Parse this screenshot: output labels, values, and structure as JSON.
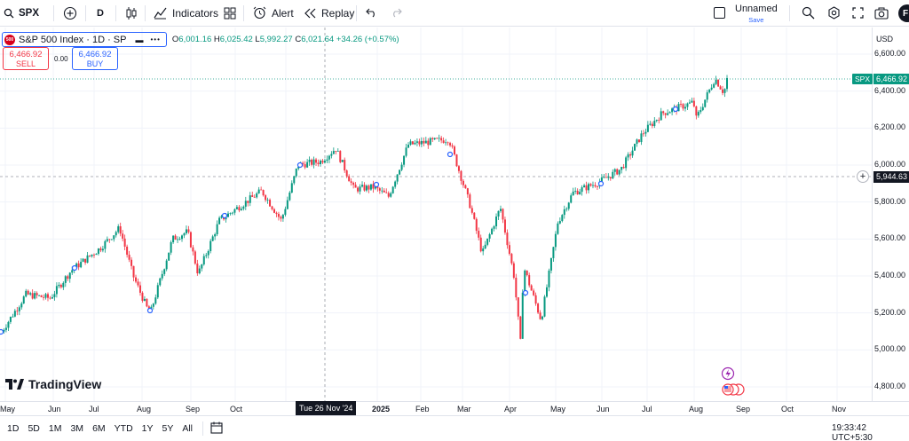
{
  "toolbar": {
    "symbol": "SPX",
    "interval": "D",
    "indicators_label": "Indicators",
    "alert_label": "Alert",
    "replay_label": "Replay",
    "layout_name": "Unnamed",
    "save_label": "Save",
    "user_initial": "F"
  },
  "legend": {
    "title": "S&P 500 Index · 1D · SP",
    "logo_text": "500",
    "open_k": "O",
    "open": "6,001.16",
    "high_k": "H",
    "high": "6,025.42",
    "low_k": "L",
    "low": "5,992.27",
    "close_k": "C",
    "close": "6,021.64",
    "change": "+34.26 (+0.57%)"
  },
  "trade": {
    "sell_price": "6,466.92",
    "sell_label": "SELL",
    "spread": "0.00",
    "buy_price": "6,466.92",
    "buy_label": "BUY"
  },
  "price_axis": {
    "currency": "USD",
    "ticks": [
      "6,600.00",
      "6,400.00",
      "6,200.00",
      "6,000.00",
      "5,800.00",
      "5,600.00",
      "5,400.00",
      "5,200.00",
      "5,000.00",
      "4,800.00"
    ],
    "last_symbol": "SPX",
    "last_price": "6,466.92",
    "crosshair_price": "5,944.63"
  },
  "time_axis": {
    "labels": [
      "May",
      "Jun",
      "Jul",
      "Aug",
      "Sep",
      "Oct",
      "Nov",
      "2025",
      "Feb",
      "Mar",
      "Apr",
      "May",
      "Jun",
      "Jul",
      "Aug",
      "Sep",
      "Oct",
      "Nov"
    ],
    "crosshair_date": "Tue 26 Nov '24"
  },
  "watermark": "TradingView",
  "bottom": {
    "ranges": [
      "1D",
      "5D",
      "1M",
      "3M",
      "6M",
      "YTD",
      "1Y",
      "5Y",
      "All"
    ],
    "clock": "19:33:42 UTC+5:30"
  },
  "colors": {
    "up": "#089981",
    "down": "#f23645",
    "accent": "#2962ff"
  },
  "chart_data": {
    "type": "candlestick",
    "symbol": "SPX",
    "interval": "1D",
    "ylim": [
      4800,
      6600
    ],
    "anchors": [
      [
        "2024-04-29",
        5100
      ],
      [
        "2024-05-15",
        5300
      ],
      [
        "2024-05-31",
        5280
      ],
      [
        "2024-06-14",
        5430
      ],
      [
        "2024-07-03",
        5550
      ],
      [
        "2024-07-16",
        5660
      ],
      [
        "2024-07-25",
        5400
      ],
      [
        "2024-08-05",
        5190
      ],
      [
        "2024-08-20",
        5600
      ],
      [
        "2024-08-30",
        5640
      ],
      [
        "2024-09-06",
        5410
      ],
      [
        "2024-09-20",
        5700
      ],
      [
        "2024-10-18",
        5860
      ],
      [
        "2024-10-31",
        5700
      ],
      [
        "2024-11-11",
        6000
      ],
      [
        "2024-11-26",
        6020
      ],
      [
        "2024-12-06",
        6090
      ],
      [
        "2024-12-18",
        5870
      ],
      [
        "2024-12-31",
        5880
      ],
      [
        "2025-01-10",
        5830
      ],
      [
        "2025-01-23",
        6110
      ],
      [
        "2025-02-19",
        6140
      ],
      [
        "2025-03-05",
        5780
      ],
      [
        "2025-03-13",
        5520
      ],
      [
        "2025-03-25",
        5770
      ],
      [
        "2025-04-03",
        5400
      ],
      [
        "2025-04-08",
        4980
      ],
      [
        "2025-04-09",
        5460
      ],
      [
        "2025-04-21",
        5160
      ],
      [
        "2025-05-02",
        5690
      ],
      [
        "2025-05-12",
        5850
      ],
      [
        "2025-05-30",
        5910
      ],
      [
        "2025-06-13",
        5980
      ],
      [
        "2025-06-27",
        6170
      ],
      [
        "2025-07-10",
        6280
      ],
      [
        "2025-07-31",
        6340
      ],
      [
        "2025-08-01",
        6240
      ],
      [
        "2025-08-14",
        6470
      ],
      [
        "2025-08-20",
        6390
      ],
      [
        "2025-08-22",
        6467
      ]
    ]
  }
}
